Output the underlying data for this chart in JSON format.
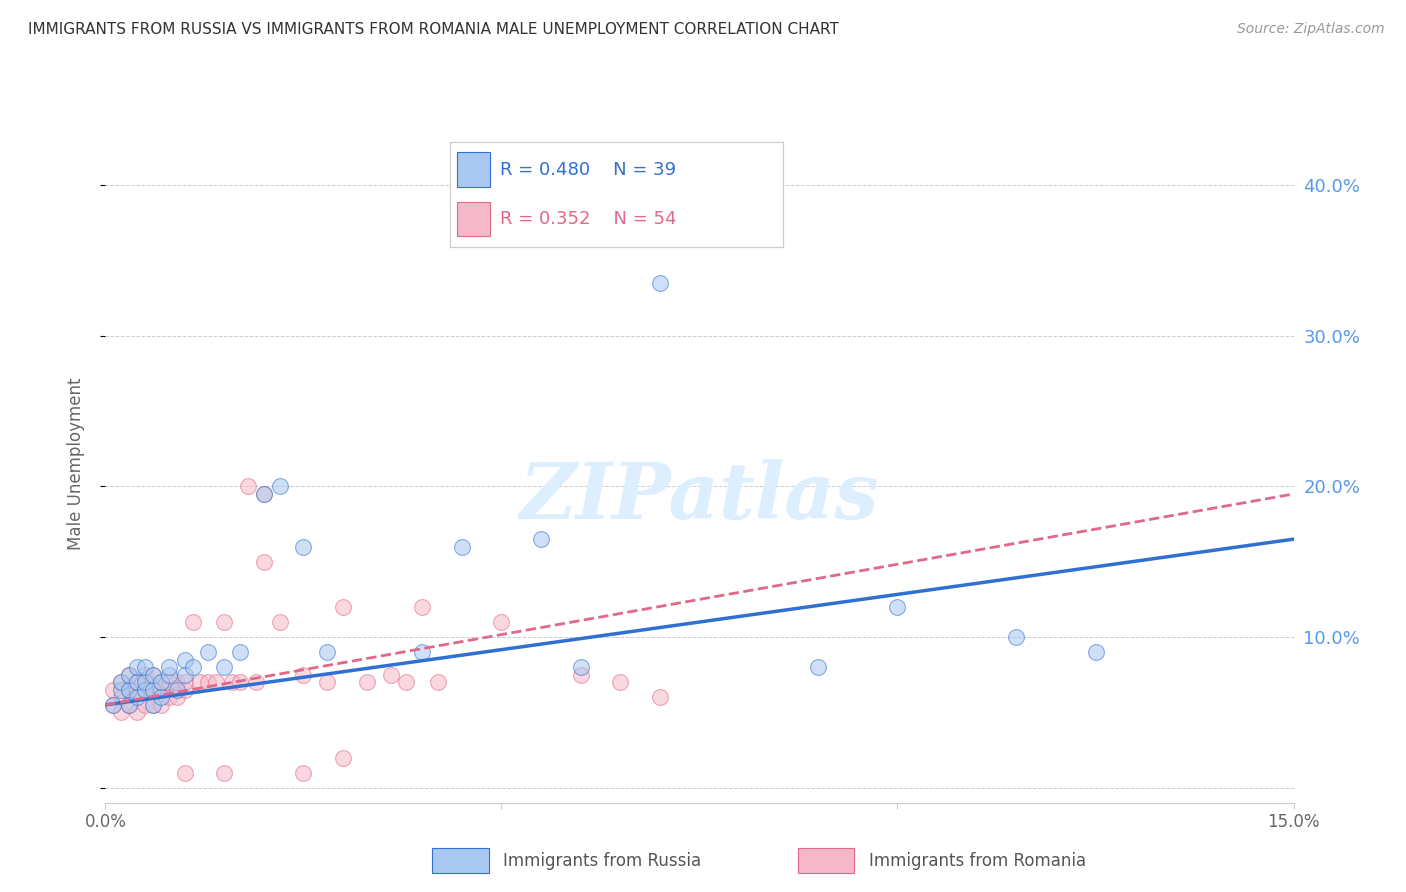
{
  "title": "IMMIGRANTS FROM RUSSIA VS IMMIGRANTS FROM ROMANIA MALE UNEMPLOYMENT CORRELATION CHART",
  "source": "Source: ZipAtlas.com",
  "ylabel": "Male Unemployment",
  "xlim": [
    0.0,
    0.15
  ],
  "ylim": [
    -0.01,
    0.44
  ],
  "yticks": [
    0.0,
    0.1,
    0.2,
    0.3,
    0.4
  ],
  "ytick_labels": [
    "",
    "10.0%",
    "20.0%",
    "30.0%",
    "40.0%"
  ],
  "xticks": [
    0.0,
    0.05,
    0.1,
    0.15
  ],
  "xtick_labels": [
    "0.0%",
    "",
    "",
    "15.0%"
  ],
  "legend1_r": "R = 0.480",
  "legend1_n": "N = 39",
  "legend2_r": "R = 0.352",
  "legend2_n": "N = 54",
  "legend1_label": "Immigrants from Russia",
  "legend2_label": "Immigrants from Romania",
  "color_russia": "#a8c8f0",
  "color_romania": "#f5b8c8",
  "color_russia_line": "#3070d0",
  "color_romania_line": "#e06888",
  "title_color": "#333333",
  "source_color": "#999999",
  "tick_color_right": "#5599ee",
  "watermark_color": "#ddeeff",
  "russia_x": [
    0.001,
    0.002,
    0.002,
    0.003,
    0.003,
    0.003,
    0.004,
    0.004,
    0.004,
    0.005,
    0.005,
    0.005,
    0.006,
    0.006,
    0.006,
    0.007,
    0.007,
    0.008,
    0.008,
    0.009,
    0.01,
    0.01,
    0.011,
    0.013,
    0.015,
    0.017,
    0.02,
    0.022,
    0.025,
    0.028,
    0.04,
    0.045,
    0.055,
    0.06,
    0.07,
    0.09,
    0.1,
    0.115,
    0.125
  ],
  "russia_y": [
    0.055,
    0.065,
    0.07,
    0.055,
    0.065,
    0.075,
    0.06,
    0.07,
    0.08,
    0.065,
    0.07,
    0.08,
    0.055,
    0.065,
    0.075,
    0.06,
    0.07,
    0.075,
    0.08,
    0.065,
    0.075,
    0.085,
    0.08,
    0.09,
    0.08,
    0.09,
    0.195,
    0.2,
    0.16,
    0.09,
    0.09,
    0.16,
    0.165,
    0.08,
    0.335,
    0.08,
    0.12,
    0.1,
    0.09
  ],
  "romania_x": [
    0.001,
    0.001,
    0.002,
    0.002,
    0.002,
    0.003,
    0.003,
    0.003,
    0.004,
    0.004,
    0.004,
    0.005,
    0.005,
    0.005,
    0.006,
    0.006,
    0.006,
    0.007,
    0.007,
    0.007,
    0.008,
    0.008,
    0.009,
    0.009,
    0.01,
    0.01,
    0.011,
    0.012,
    0.013,
    0.014,
    0.015,
    0.016,
    0.017,
    0.018,
    0.019,
    0.02,
    0.022,
    0.025,
    0.028,
    0.03,
    0.033,
    0.036,
    0.038,
    0.04,
    0.042,
    0.05,
    0.06,
    0.065,
    0.07,
    0.02,
    0.015,
    0.025,
    0.03,
    0.01
  ],
  "romania_y": [
    0.055,
    0.065,
    0.05,
    0.06,
    0.07,
    0.055,
    0.065,
    0.075,
    0.05,
    0.065,
    0.07,
    0.055,
    0.065,
    0.075,
    0.055,
    0.065,
    0.075,
    0.055,
    0.065,
    0.07,
    0.06,
    0.07,
    0.06,
    0.07,
    0.065,
    0.07,
    0.11,
    0.07,
    0.07,
    0.07,
    0.11,
    0.07,
    0.07,
    0.2,
    0.07,
    0.195,
    0.11,
    0.075,
    0.07,
    0.12,
    0.07,
    0.075,
    0.07,
    0.12,
    0.07,
    0.11,
    0.075,
    0.07,
    0.06,
    0.15,
    0.01,
    0.01,
    0.02,
    0.01
  ],
  "russia_trend_x0": 0.0,
  "russia_trend_y0": 0.055,
  "russia_trend_x1": 0.15,
  "russia_trend_y1": 0.165,
  "romania_trend_x0": 0.0,
  "romania_trend_y0": 0.055,
  "romania_trend_x1": 0.15,
  "romania_trend_y1": 0.195
}
